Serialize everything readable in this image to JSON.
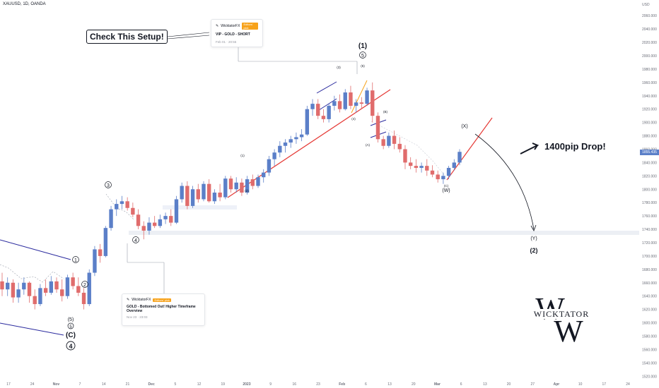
{
  "header": {
    "ticker": "XAUUSD, 1D, OANDA"
  },
  "price_axis": {
    "unit": "USD",
    "ticks": [
      "2060.000",
      "2040.000",
      "2020.000",
      "2000.000",
      "1980.000",
      "1960.000",
      "1940.000",
      "1920.000",
      "1900.000",
      "1880.000",
      "1860.000",
      "1840.000",
      "1820.000",
      "1800.000",
      "1780.000",
      "1760.000",
      "1740.000",
      "1720.000",
      "1700.000",
      "1680.000",
      "1660.000",
      "1640.000",
      "1620.000",
      "1600.000",
      "1580.000",
      "1560.000",
      "1540.000",
      "1520.000"
    ],
    "current_price": "1855.435",
    "current_color": "#5b7fc8"
  },
  "time_axis": {
    "labels": [
      "17",
      "24",
      "Nov",
      "7",
      "14",
      "21",
      "Dec",
      "5",
      "12",
      "19",
      "2023",
      "9",
      "16",
      "23",
      "Feb",
      "6",
      "13",
      "20",
      "Mar",
      "6",
      "13",
      "20",
      "27",
      "Apr",
      "10",
      "17",
      "24"
    ]
  },
  "annotations": {
    "callout_setup": "Check This Setup!",
    "drop": "1400pip Drop!",
    "wave_1_top": "(1)",
    "wave_5_circ": "5",
    "wave_3_circ": "3",
    "wave_4_circ": "4",
    "wave_1_circ": "1",
    "wave_2_circ": "2",
    "wave_5_paren": "(5)",
    "wave_5_circ_b": "5",
    "wave_C": "(C)",
    "wave_4_big": "4",
    "wave_X": "(X)",
    "wave_Y": "(Y)",
    "wave_2_paren": "(2)",
    "wave_W": "(W)",
    "wave_C_small": "(C)",
    "sub_1": "(1)",
    "sub_2": "(2)",
    "sub_A": "(A)",
    "sub_B": "(B)",
    "sub_4": "(4)",
    "sub_3": "(3)",
    "sub_5": "(5)"
  },
  "idea_top": {
    "author": "WicktatorFX",
    "badge": "Editors' pick",
    "title": "VIP - GOLD - SHORT",
    "date": "Feb 01 · 20:55"
  },
  "idea_bottom": {
    "author": "WicktatorFX",
    "badge": "Editors' pick",
    "title": "GOLD - Bottomed Out! Higher Timeframe Overview",
    "date": "Nov 23 · 23:03"
  },
  "logo": {
    "text": "WICKTATOR"
  },
  "colors": {
    "up": "#5b7fc8",
    "down": "#e06c6c",
    "trend_red": "#e53935",
    "channel_blue": "#2a2a9e"
  },
  "chart_data": {
    "type": "candlestick",
    "title": "XAUUSD, 1D, OANDA",
    "ylabel": "USD",
    "ylim": [
      1515,
      2075
    ],
    "candles": [
      {
        "o": 1662,
        "h": 1675,
        "l": 1640,
        "c": 1650
      },
      {
        "o": 1650,
        "h": 1668,
        "l": 1640,
        "c": 1660
      },
      {
        "o": 1660,
        "h": 1665,
        "l": 1630,
        "c": 1638
      },
      {
        "o": 1638,
        "h": 1660,
        "l": 1630,
        "c": 1650
      },
      {
        "o": 1650,
        "h": 1668,
        "l": 1642,
        "c": 1660
      },
      {
        "o": 1660,
        "h": 1662,
        "l": 1630,
        "c": 1640
      },
      {
        "o": 1640,
        "h": 1650,
        "l": 1620,
        "c": 1628
      },
      {
        "o": 1628,
        "h": 1658,
        "l": 1625,
        "c": 1652
      },
      {
        "o": 1652,
        "h": 1665,
        "l": 1640,
        "c": 1645
      },
      {
        "o": 1645,
        "h": 1670,
        "l": 1642,
        "c": 1662
      },
      {
        "o": 1662,
        "h": 1668,
        "l": 1645,
        "c": 1650
      },
      {
        "o": 1650,
        "h": 1665,
        "l": 1632,
        "c": 1640
      },
      {
        "o": 1640,
        "h": 1672,
        "l": 1636,
        "c": 1668
      },
      {
        "o": 1668,
        "h": 1675,
        "l": 1650,
        "c": 1655
      },
      {
        "o": 1655,
        "h": 1668,
        "l": 1640,
        "c": 1645
      },
      {
        "o": 1645,
        "h": 1652,
        "l": 1620,
        "c": 1628
      },
      {
        "o": 1628,
        "h": 1680,
        "l": 1625,
        "c": 1675
      },
      {
        "o": 1675,
        "h": 1715,
        "l": 1670,
        "c": 1710
      },
      {
        "o": 1710,
        "h": 1718,
        "l": 1690,
        "c": 1700
      },
      {
        "o": 1700,
        "h": 1745,
        "l": 1698,
        "c": 1742
      },
      {
        "o": 1742,
        "h": 1775,
        "l": 1738,
        "c": 1770
      },
      {
        "o": 1770,
        "h": 1785,
        "l": 1760,
        "c": 1778
      },
      {
        "o": 1778,
        "h": 1790,
        "l": 1770,
        "c": 1782
      },
      {
        "o": 1782,
        "h": 1788,
        "l": 1768,
        "c": 1772
      },
      {
        "o": 1772,
        "h": 1780,
        "l": 1758,
        "c": 1762
      },
      {
        "o": 1762,
        "h": 1770,
        "l": 1740,
        "c": 1745
      },
      {
        "o": 1745,
        "h": 1752,
        "l": 1725,
        "c": 1738
      },
      {
        "o": 1738,
        "h": 1758,
        "l": 1732,
        "c": 1750
      },
      {
        "o": 1750,
        "h": 1760,
        "l": 1742,
        "c": 1745
      },
      {
        "o": 1745,
        "h": 1762,
        "l": 1742,
        "c": 1755
      },
      {
        "o": 1755,
        "h": 1765,
        "l": 1748,
        "c": 1760
      },
      {
        "o": 1760,
        "h": 1770,
        "l": 1745,
        "c": 1750
      },
      {
        "o": 1750,
        "h": 1790,
        "l": 1748,
        "c": 1785
      },
      {
        "o": 1785,
        "h": 1810,
        "l": 1780,
        "c": 1805
      },
      {
        "o": 1805,
        "h": 1812,
        "l": 1770,
        "c": 1775
      },
      {
        "o": 1775,
        "h": 1805,
        "l": 1772,
        "c": 1800
      },
      {
        "o": 1800,
        "h": 1808,
        "l": 1780,
        "c": 1785
      },
      {
        "o": 1785,
        "h": 1812,
        "l": 1782,
        "c": 1808
      },
      {
        "o": 1808,
        "h": 1815,
        "l": 1780,
        "c": 1782
      },
      {
        "o": 1782,
        "h": 1800,
        "l": 1778,
        "c": 1795
      },
      {
        "o": 1795,
        "h": 1808,
        "l": 1782,
        "c": 1788
      },
      {
        "o": 1788,
        "h": 1820,
        "l": 1785,
        "c": 1816
      },
      {
        "o": 1816,
        "h": 1820,
        "l": 1795,
        "c": 1800
      },
      {
        "o": 1800,
        "h": 1818,
        "l": 1795,
        "c": 1810
      },
      {
        "o": 1810,
        "h": 1816,
        "l": 1790,
        "c": 1795
      },
      {
        "o": 1795,
        "h": 1820,
        "l": 1792,
        "c": 1815
      },
      {
        "o": 1815,
        "h": 1822,
        "l": 1800,
        "c": 1805
      },
      {
        "o": 1805,
        "h": 1822,
        "l": 1802,
        "c": 1818
      },
      {
        "o": 1818,
        "h": 1830,
        "l": 1810,
        "c": 1825
      },
      {
        "o": 1825,
        "h": 1850,
        "l": 1820,
        "c": 1845
      },
      {
        "o": 1845,
        "h": 1860,
        "l": 1835,
        "c": 1855
      },
      {
        "o": 1855,
        "h": 1872,
        "l": 1848,
        "c": 1865
      },
      {
        "o": 1865,
        "h": 1875,
        "l": 1855,
        "c": 1870
      },
      {
        "o": 1870,
        "h": 1880,
        "l": 1862,
        "c": 1875
      },
      {
        "o": 1875,
        "h": 1885,
        "l": 1868,
        "c": 1878
      },
      {
        "o": 1878,
        "h": 1890,
        "l": 1872,
        "c": 1882
      },
      {
        "o": 1882,
        "h": 1925,
        "l": 1880,
        "c": 1920
      },
      {
        "o": 1920,
        "h": 1935,
        "l": 1910,
        "c": 1928
      },
      {
        "o": 1928,
        "h": 1935,
        "l": 1905,
        "c": 1910
      },
      {
        "o": 1910,
        "h": 1920,
        "l": 1900,
        "c": 1905
      },
      {
        "o": 1905,
        "h": 1928,
        "l": 1900,
        "c": 1925
      },
      {
        "o": 1925,
        "h": 1940,
        "l": 1918,
        "c": 1932
      },
      {
        "o": 1932,
        "h": 1942,
        "l": 1915,
        "c": 1920
      },
      {
        "o": 1920,
        "h": 1950,
        "l": 1918,
        "c": 1945
      },
      {
        "o": 1945,
        "h": 1955,
        "l": 1920,
        "c": 1925
      },
      {
        "o": 1925,
        "h": 1935,
        "l": 1915,
        "c": 1930
      },
      {
        "o": 1930,
        "h": 1938,
        "l": 1920,
        "c": 1928
      },
      {
        "o": 1928,
        "h": 1952,
        "l": 1925,
        "c": 1948
      },
      {
        "o": 1948,
        "h": 1960,
        "l": 1900,
        "c": 1910
      },
      {
        "o": 1910,
        "h": 1915,
        "l": 1870,
        "c": 1875
      },
      {
        "o": 1875,
        "h": 1880,
        "l": 1860,
        "c": 1865
      },
      {
        "o": 1865,
        "h": 1885,
        "l": 1862,
        "c": 1880
      },
      {
        "o": 1880,
        "h": 1888,
        "l": 1860,
        "c": 1868
      },
      {
        "o": 1868,
        "h": 1878,
        "l": 1855,
        "c": 1860
      },
      {
        "o": 1860,
        "h": 1866,
        "l": 1830,
        "c": 1840
      },
      {
        "o": 1840,
        "h": 1848,
        "l": 1830,
        "c": 1835
      },
      {
        "o": 1835,
        "h": 1845,
        "l": 1825,
        "c": 1832
      },
      {
        "o": 1832,
        "h": 1840,
        "l": 1825,
        "c": 1835
      },
      {
        "o": 1835,
        "h": 1845,
        "l": 1820,
        "c": 1828
      },
      {
        "o": 1828,
        "h": 1836,
        "l": 1818,
        "c": 1822
      },
      {
        "o": 1822,
        "h": 1828,
        "l": 1810,
        "c": 1815
      },
      {
        "o": 1815,
        "h": 1825,
        "l": 1808,
        "c": 1820
      },
      {
        "o": 1820,
        "h": 1835,
        "l": 1815,
        "c": 1832
      },
      {
        "o": 1832,
        "h": 1845,
        "l": 1828,
        "c": 1840
      },
      {
        "o": 1840,
        "h": 1860,
        "l": 1836,
        "c": 1856
      }
    ],
    "projection": {
      "x_label": "(X)",
      "y_label": "(Y)",
      "target": 1728
    },
    "horizontal_level": 1728
  }
}
